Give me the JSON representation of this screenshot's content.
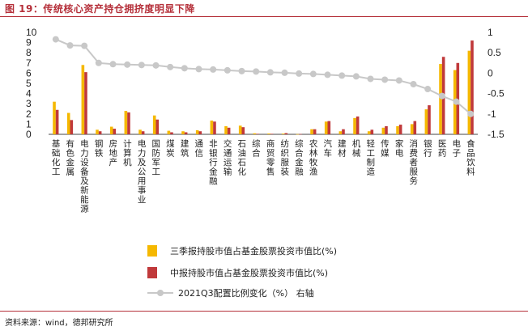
{
  "figure": {
    "title": "图 19：传统核心资产持仓拥挤度明显下降",
    "source": "资料来源：wind，德邦研究所"
  },
  "chart_data": {
    "type": "bar",
    "categories": [
      "基础化工",
      "有色金属",
      "电力设备及新能源",
      "钢铁",
      "房地产",
      "计算机",
      "电力及公用事业",
      "国防军工",
      "煤炭",
      "建筑",
      "通信",
      "非银行金融",
      "交通运输",
      "石油石化",
      "综合",
      "商贸零售",
      "纺织服装",
      "综合金融",
      "农林牧渔",
      "汽车",
      "建材",
      "机械",
      "轻工制造",
      "传媒",
      "家电",
      "消费者服务",
      "银行",
      "医药",
      "电子",
      "食品饮料"
    ],
    "series": [
      {
        "name": "三季报持股市值占基金股票投资市值比(%)",
        "type": "bar",
        "axis": "left",
        "color": "#f5b800",
        "values": [
          3.2,
          2.1,
          6.8,
          0.45,
          0.75,
          2.3,
          0.45,
          1.85,
          0.35,
          0.3,
          0.4,
          1.35,
          0.8,
          0.85,
          0.1,
          0.08,
          0.07,
          0.02,
          0.5,
          1.25,
          0.3,
          1.6,
          0.3,
          0.65,
          0.8,
          1.0,
          2.45,
          6.9,
          6.3,
          8.2
        ]
      },
      {
        "name": "中报持股市值占基金股票投资市值比(%)",
        "type": "bar",
        "axis": "left",
        "color": "#c0393b",
        "values": [
          2.4,
          1.4,
          6.1,
          0.3,
          0.55,
          2.15,
          0.3,
          1.45,
          0.2,
          0.2,
          0.3,
          1.25,
          0.65,
          0.7,
          0.05,
          0.05,
          0.12,
          0.03,
          0.5,
          1.3,
          0.5,
          1.75,
          0.45,
          0.8,
          0.95,
          1.3,
          2.85,
          7.6,
          7.0,
          9.2
        ]
      },
      {
        "name": "2021Q3配置比例变化（%）  右轴",
        "type": "line",
        "axis": "right",
        "color": "#c8c8c8",
        "values": [
          0.83,
          0.68,
          0.67,
          0.25,
          0.22,
          0.21,
          0.2,
          0.19,
          0.15,
          0.12,
          0.1,
          0.09,
          0.07,
          0.05,
          0.04,
          0.02,
          0.01,
          -0.01,
          -0.02,
          -0.04,
          -0.06,
          -0.08,
          -0.14,
          -0.16,
          -0.18,
          -0.27,
          -0.39,
          -0.56,
          -0.7,
          -1.0
        ]
      }
    ],
    "y_left": {
      "ylim": [
        0,
        10
      ],
      "ticks": [
        "0",
        "1",
        "2",
        "3",
        "4",
        "5",
        "6",
        "7",
        "8",
        "9",
        "10"
      ]
    },
    "y_right": {
      "ylim": [
        -1.5,
        1
      ],
      "ticks": [
        "1",
        "0.5",
        "0",
        "-0.5",
        "-1",
        "-1.5"
      ]
    },
    "legend_position": "bottom"
  }
}
